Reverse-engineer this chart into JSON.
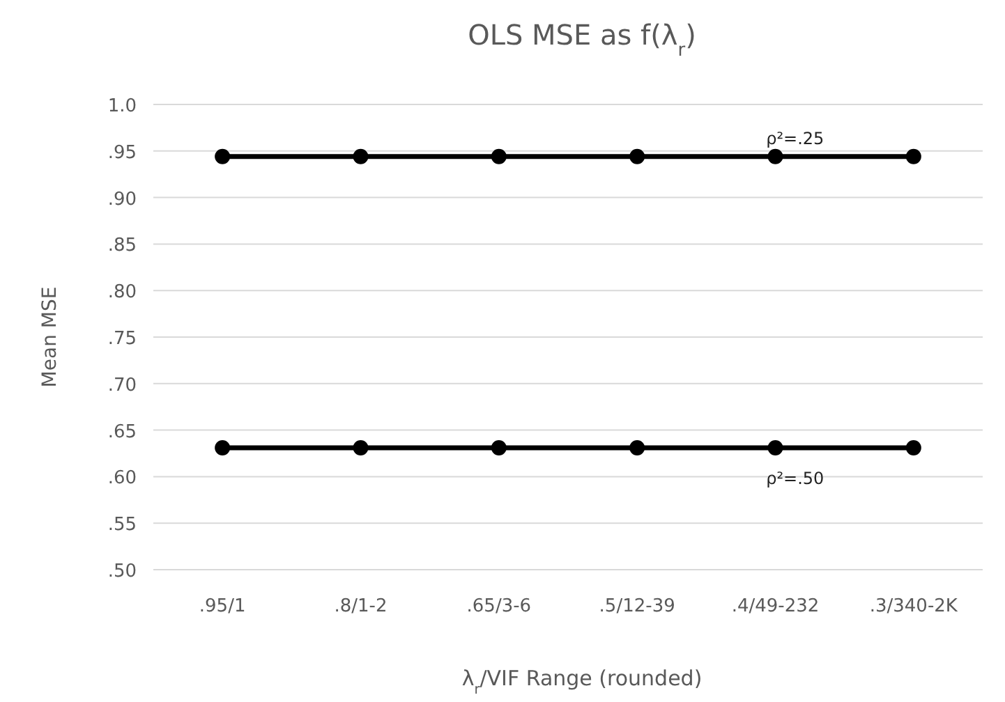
{
  "chart_data": {
    "type": "line",
    "title": "OLS  MSE as f(λ$_{r}$)",
    "xlabel": "λ$_{r}$/VIF Range (rounded)",
    "ylabel": "Mean MSE",
    "categories": [
      ".95/1",
      ".8/1-2",
      ".65/3-6",
      ".5/12-39",
      ".4/49-232",
      ".3/340-2K"
    ],
    "series": [
      {
        "name": "ρ²=.25",
        "color": "#000000",
        "values": [
          0.944,
          0.944,
          0.944,
          0.944,
          0.944,
          0.944
        ]
      },
      {
        "name": "ρ²=.50",
        "color": "#000000",
        "values": [
          0.631,
          0.631,
          0.631,
          0.631,
          0.631,
          0.631
        ]
      }
    ],
    "ylim": [
      0.5,
      1.0
    ],
    "yticks": [
      {
        "value": 0.5,
        "label": ".50"
      },
      {
        "value": 0.55,
        "label": ".55"
      },
      {
        "value": 0.6,
        "label": ".60"
      },
      {
        "value": 0.65,
        "label": ".65"
      },
      {
        "value": 0.7,
        "label": ".70"
      },
      {
        "value": 0.75,
        "label": ".75"
      },
      {
        "value": 0.8,
        "label": ".80"
      },
      {
        "value": 0.85,
        "label": ".85"
      },
      {
        "value": 0.9,
        "label": ".90"
      },
      {
        "value": 0.95,
        "label": ".95"
      },
      {
        "value": 1.0,
        "label": "1.0"
      }
    ],
    "grid": "y",
    "marker": "circle",
    "line_style": "solid"
  }
}
